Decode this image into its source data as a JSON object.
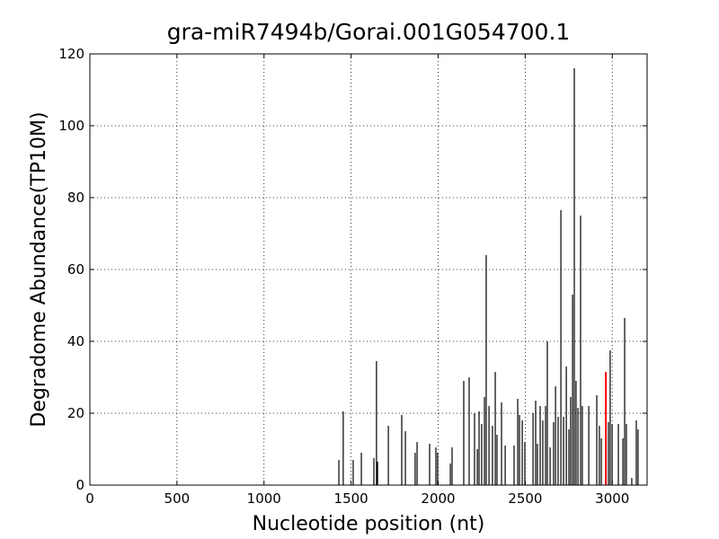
{
  "chart_data": {
    "type": "vlines",
    "title": "gra-miR7494b/Gorai.001G054700.1",
    "xlabel": "Nucleotide position (nt)",
    "ylabel": "Degradome Abundance(TP10M)",
    "xlim": [
      0,
      3200
    ],
    "xticks": [
      0,
      500,
      1000,
      1500,
      2000,
      2500,
      3000
    ],
    "ylim": [
      0,
      120
    ],
    "yticks": [
      0,
      20,
      40,
      60,
      80,
      100,
      120
    ],
    "grid": true,
    "series": [
      {
        "color": "#000000",
        "x": [
          1430,
          1455,
          1512,
          1559,
          1631,
          1646,
          1652,
          1714,
          1791,
          1812,
          1868,
          1879,
          1951,
          1987,
          1997,
          2070,
          2080,
          2147,
          2178,
          2209,
          2225,
          2235,
          2250,
          2266,
          2276,
          2292,
          2312,
          2328,
          2338,
          2364,
          2385,
          2436,
          2457,
          2467,
          2483,
          2498,
          2545,
          2560,
          2570,
          2586,
          2601,
          2617,
          2627,
          2643,
          2663,
          2674,
          2689,
          2705,
          2720,
          2736,
          2751,
          2761,
          2772,
          2782,
          2792,
          2803,
          2818,
          2828,
          2865,
          2911,
          2926,
          2937,
          2978,
          2988,
          2999,
          3035,
          3061,
          3071,
          3081,
          3112,
          3138,
          3148
        ],
        "values": [
          7,
          20.5,
          7,
          9,
          7.5,
          34.5,
          6.5,
          16.5,
          19.5,
          15,
          9,
          12,
          11.5,
          10.5,
          9,
          6,
          10.5,
          29,
          30,
          20,
          10,
          20.5,
          17,
          24.5,
          64,
          22,
          16.5,
          31.5,
          14,
          23,
          11,
          11,
          24,
          19.5,
          18,
          12,
          20,
          23.5,
          11.5,
          22,
          18,
          22,
          40,
          10.5,
          17.5,
          27.5,
          19,
          76.5,
          19,
          33,
          15.5,
          24.5,
          53,
          116,
          29,
          21.5,
          75,
          22,
          22,
          25,
          16.5,
          13,
          17.5,
          37.5,
          17,
          17,
          13,
          46.5,
          17,
          2,
          18,
          15.5
        ]
      },
      {
        "color": "#ff0000",
        "x": [
          2963
        ],
        "values": [
          31.5
        ]
      }
    ]
  }
}
